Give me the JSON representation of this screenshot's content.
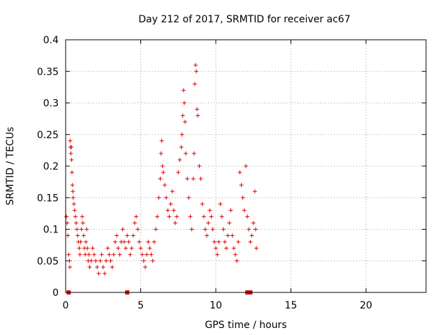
{
  "chart_data": {
    "type": "scatter",
    "title": "Day 212 of 2017, SRMTID for receiver ac67",
    "xlabel": "GPS time / hours",
    "ylabel": "SRMTID / TECUs",
    "xlim": [
      0,
      24
    ],
    "ylim": [
      0,
      0.4
    ],
    "grid": true,
    "xticks": [
      0,
      5,
      10,
      15,
      20
    ],
    "xtick_labels": [
      "0",
      "5",
      "10",
      "15",
      "20"
    ],
    "yticks": [
      0,
      0.05,
      0.1,
      0.15,
      0.2,
      0.25,
      0.3,
      0.35,
      0.4
    ],
    "ytick_labels": [
      "0",
      "0.05",
      "0.1",
      "0.15",
      "0.2",
      "0.25",
      "0.3",
      "0.35",
      "0.4"
    ],
    "marker": "plus",
    "color": "#e00000",
    "series": [
      {
        "name": "SRMTID",
        "points": [
          [
            0.05,
            0.12
          ],
          [
            0.1,
            0.11
          ],
          [
            0.15,
            0.09
          ],
          [
            0.2,
            0.06
          ],
          [
            0.25,
            0.05
          ],
          [
            0.28,
            0.04
          ],
          [
            0.3,
            0.24
          ],
          [
            0.32,
            0.23
          ],
          [
            0.35,
            0.22
          ],
          [
            0.38,
            0.23
          ],
          [
            0.4,
            0.21
          ],
          [
            0.42,
            0.19
          ],
          [
            0.45,
            0.17
          ],
          [
            0.48,
            0.16
          ],
          [
            0.5,
            0.15
          ],
          [
            0.55,
            0.14
          ],
          [
            0.6,
            0.13
          ],
          [
            0.65,
            0.12
          ],
          [
            0.7,
            0.11
          ],
          [
            0.75,
            0.1
          ],
          [
            0.8,
            0.09
          ],
          [
            0.85,
            0.08
          ],
          [
            0.9,
            0.07
          ],
          [
            0.95,
            0.06
          ],
          [
            1.0,
            0.08
          ],
          [
            1.05,
            0.1
          ],
          [
            1.1,
            0.12
          ],
          [
            1.15,
            0.11
          ],
          [
            1.2,
            0.09
          ],
          [
            1.25,
            0.07
          ],
          [
            1.3,
            0.06
          ],
          [
            1.35,
            0.08
          ],
          [
            1.4,
            0.1
          ],
          [
            1.45,
            0.07
          ],
          [
            1.5,
            0.05
          ],
          [
            1.55,
            0.06
          ],
          [
            1.6,
            0.04
          ],
          [
            1.7,
            0.05
          ],
          [
            1.8,
            0.07
          ],
          [
            1.9,
            0.06
          ],
          [
            2.0,
            0.05
          ],
          [
            2.1,
            0.04
          ],
          [
            2.2,
            0.03
          ],
          [
            2.3,
            0.05
          ],
          [
            2.4,
            0.06
          ],
          [
            2.5,
            0.04
          ],
          [
            2.6,
            0.03
          ],
          [
            2.7,
            0.05
          ],
          [
            2.8,
            0.07
          ],
          [
            2.9,
            0.06
          ],
          [
            3.0,
            0.05
          ],
          [
            3.1,
            0.04
          ],
          [
            3.2,
            0.06
          ],
          [
            3.3,
            0.08
          ],
          [
            3.4,
            0.09
          ],
          [
            3.5,
            0.07
          ],
          [
            3.6,
            0.06
          ],
          [
            3.7,
            0.08
          ],
          [
            3.8,
            0.1
          ],
          [
            3.9,
            0.08
          ],
          [
            4.0,
            0.07
          ],
          [
            4.1,
            0.09
          ],
          [
            4.2,
            0.08
          ],
          [
            4.3,
            0.06
          ],
          [
            4.4,
            0.07
          ],
          [
            4.5,
            0.09
          ],
          [
            4.6,
            0.11
          ],
          [
            4.7,
            0.12
          ],
          [
            4.8,
            0.1
          ],
          [
            4.9,
            0.08
          ],
          [
            5.0,
            0.07
          ],
          [
            5.1,
            0.06
          ],
          [
            5.2,
            0.05
          ],
          [
            5.3,
            0.04
          ],
          [
            5.4,
            0.06
          ],
          [
            5.5,
            0.08
          ],
          [
            5.6,
            0.07
          ],
          [
            5.7,
            0.06
          ],
          [
            5.8,
            0.05
          ],
          [
            5.9,
            0.08
          ],
          [
            6.0,
            0.1
          ],
          [
            6.1,
            0.12
          ],
          [
            6.2,
            0.15
          ],
          [
            6.3,
            0.18
          ],
          [
            6.35,
            0.22
          ],
          [
            6.4,
            0.24
          ],
          [
            6.45,
            0.2
          ],
          [
            6.5,
            0.19
          ],
          [
            6.6,
            0.17
          ],
          [
            6.7,
            0.15
          ],
          [
            6.8,
            0.13
          ],
          [
            6.9,
            0.12
          ],
          [
            7.0,
            0.14
          ],
          [
            7.1,
            0.16
          ],
          [
            7.2,
            0.13
          ],
          [
            7.3,
            0.11
          ],
          [
            7.4,
            0.12
          ],
          [
            7.5,
            0.19
          ],
          [
            7.6,
            0.21
          ],
          [
            7.7,
            0.23
          ],
          [
            7.75,
            0.25
          ],
          [
            7.8,
            0.28
          ],
          [
            7.85,
            0.32
          ],
          [
            7.9,
            0.3
          ],
          [
            7.95,
            0.27
          ],
          [
            8.0,
            0.22
          ],
          [
            8.1,
            0.18
          ],
          [
            8.2,
            0.15
          ],
          [
            8.3,
            0.12
          ],
          [
            8.4,
            0.1
          ],
          [
            8.5,
            0.18
          ],
          [
            8.55,
            0.22
          ],
          [
            8.6,
            0.33
          ],
          [
            8.65,
            0.36
          ],
          [
            8.7,
            0.35
          ],
          [
            8.75,
            0.29
          ],
          [
            8.8,
            0.28
          ],
          [
            8.9,
            0.2
          ],
          [
            9.0,
            0.18
          ],
          [
            9.1,
            0.14
          ],
          [
            9.2,
            0.12
          ],
          [
            9.3,
            0.1
          ],
          [
            9.4,
            0.09
          ],
          [
            9.5,
            0.11
          ],
          [
            9.6,
            0.13
          ],
          [
            9.7,
            0.12
          ],
          [
            9.8,
            0.1
          ],
          [
            9.9,
            0.08
          ],
          [
            10.0,
            0.07
          ],
          [
            10.1,
            0.06
          ],
          [
            10.2,
            0.08
          ],
          [
            10.3,
            0.14
          ],
          [
            10.4,
            0.12
          ],
          [
            10.5,
            0.1
          ],
          [
            10.6,
            0.08
          ],
          [
            10.7,
            0.07
          ],
          [
            10.8,
            0.09
          ],
          [
            10.9,
            0.11
          ],
          [
            11.0,
            0.13
          ],
          [
            11.1,
            0.09
          ],
          [
            11.2,
            0.07
          ],
          [
            11.3,
            0.06
          ],
          [
            11.4,
            0.05
          ],
          [
            11.5,
            0.08
          ],
          [
            11.6,
            0.19
          ],
          [
            11.7,
            0.17
          ],
          [
            11.8,
            0.15
          ],
          [
            11.9,
            0.13
          ],
          [
            12.0,
            0.2
          ],
          [
            12.1,
            0.12
          ],
          [
            12.2,
            0.1
          ],
          [
            12.3,
            0.08
          ],
          [
            12.4,
            0.09
          ],
          [
            12.5,
            0.11
          ],
          [
            12.6,
            0.16
          ],
          [
            12.65,
            0.1
          ],
          [
            12.7,
            0.07
          ]
        ]
      }
    ],
    "markers_on_axis": [
      0.2,
      4.1,
      12.1,
      12.3
    ]
  }
}
